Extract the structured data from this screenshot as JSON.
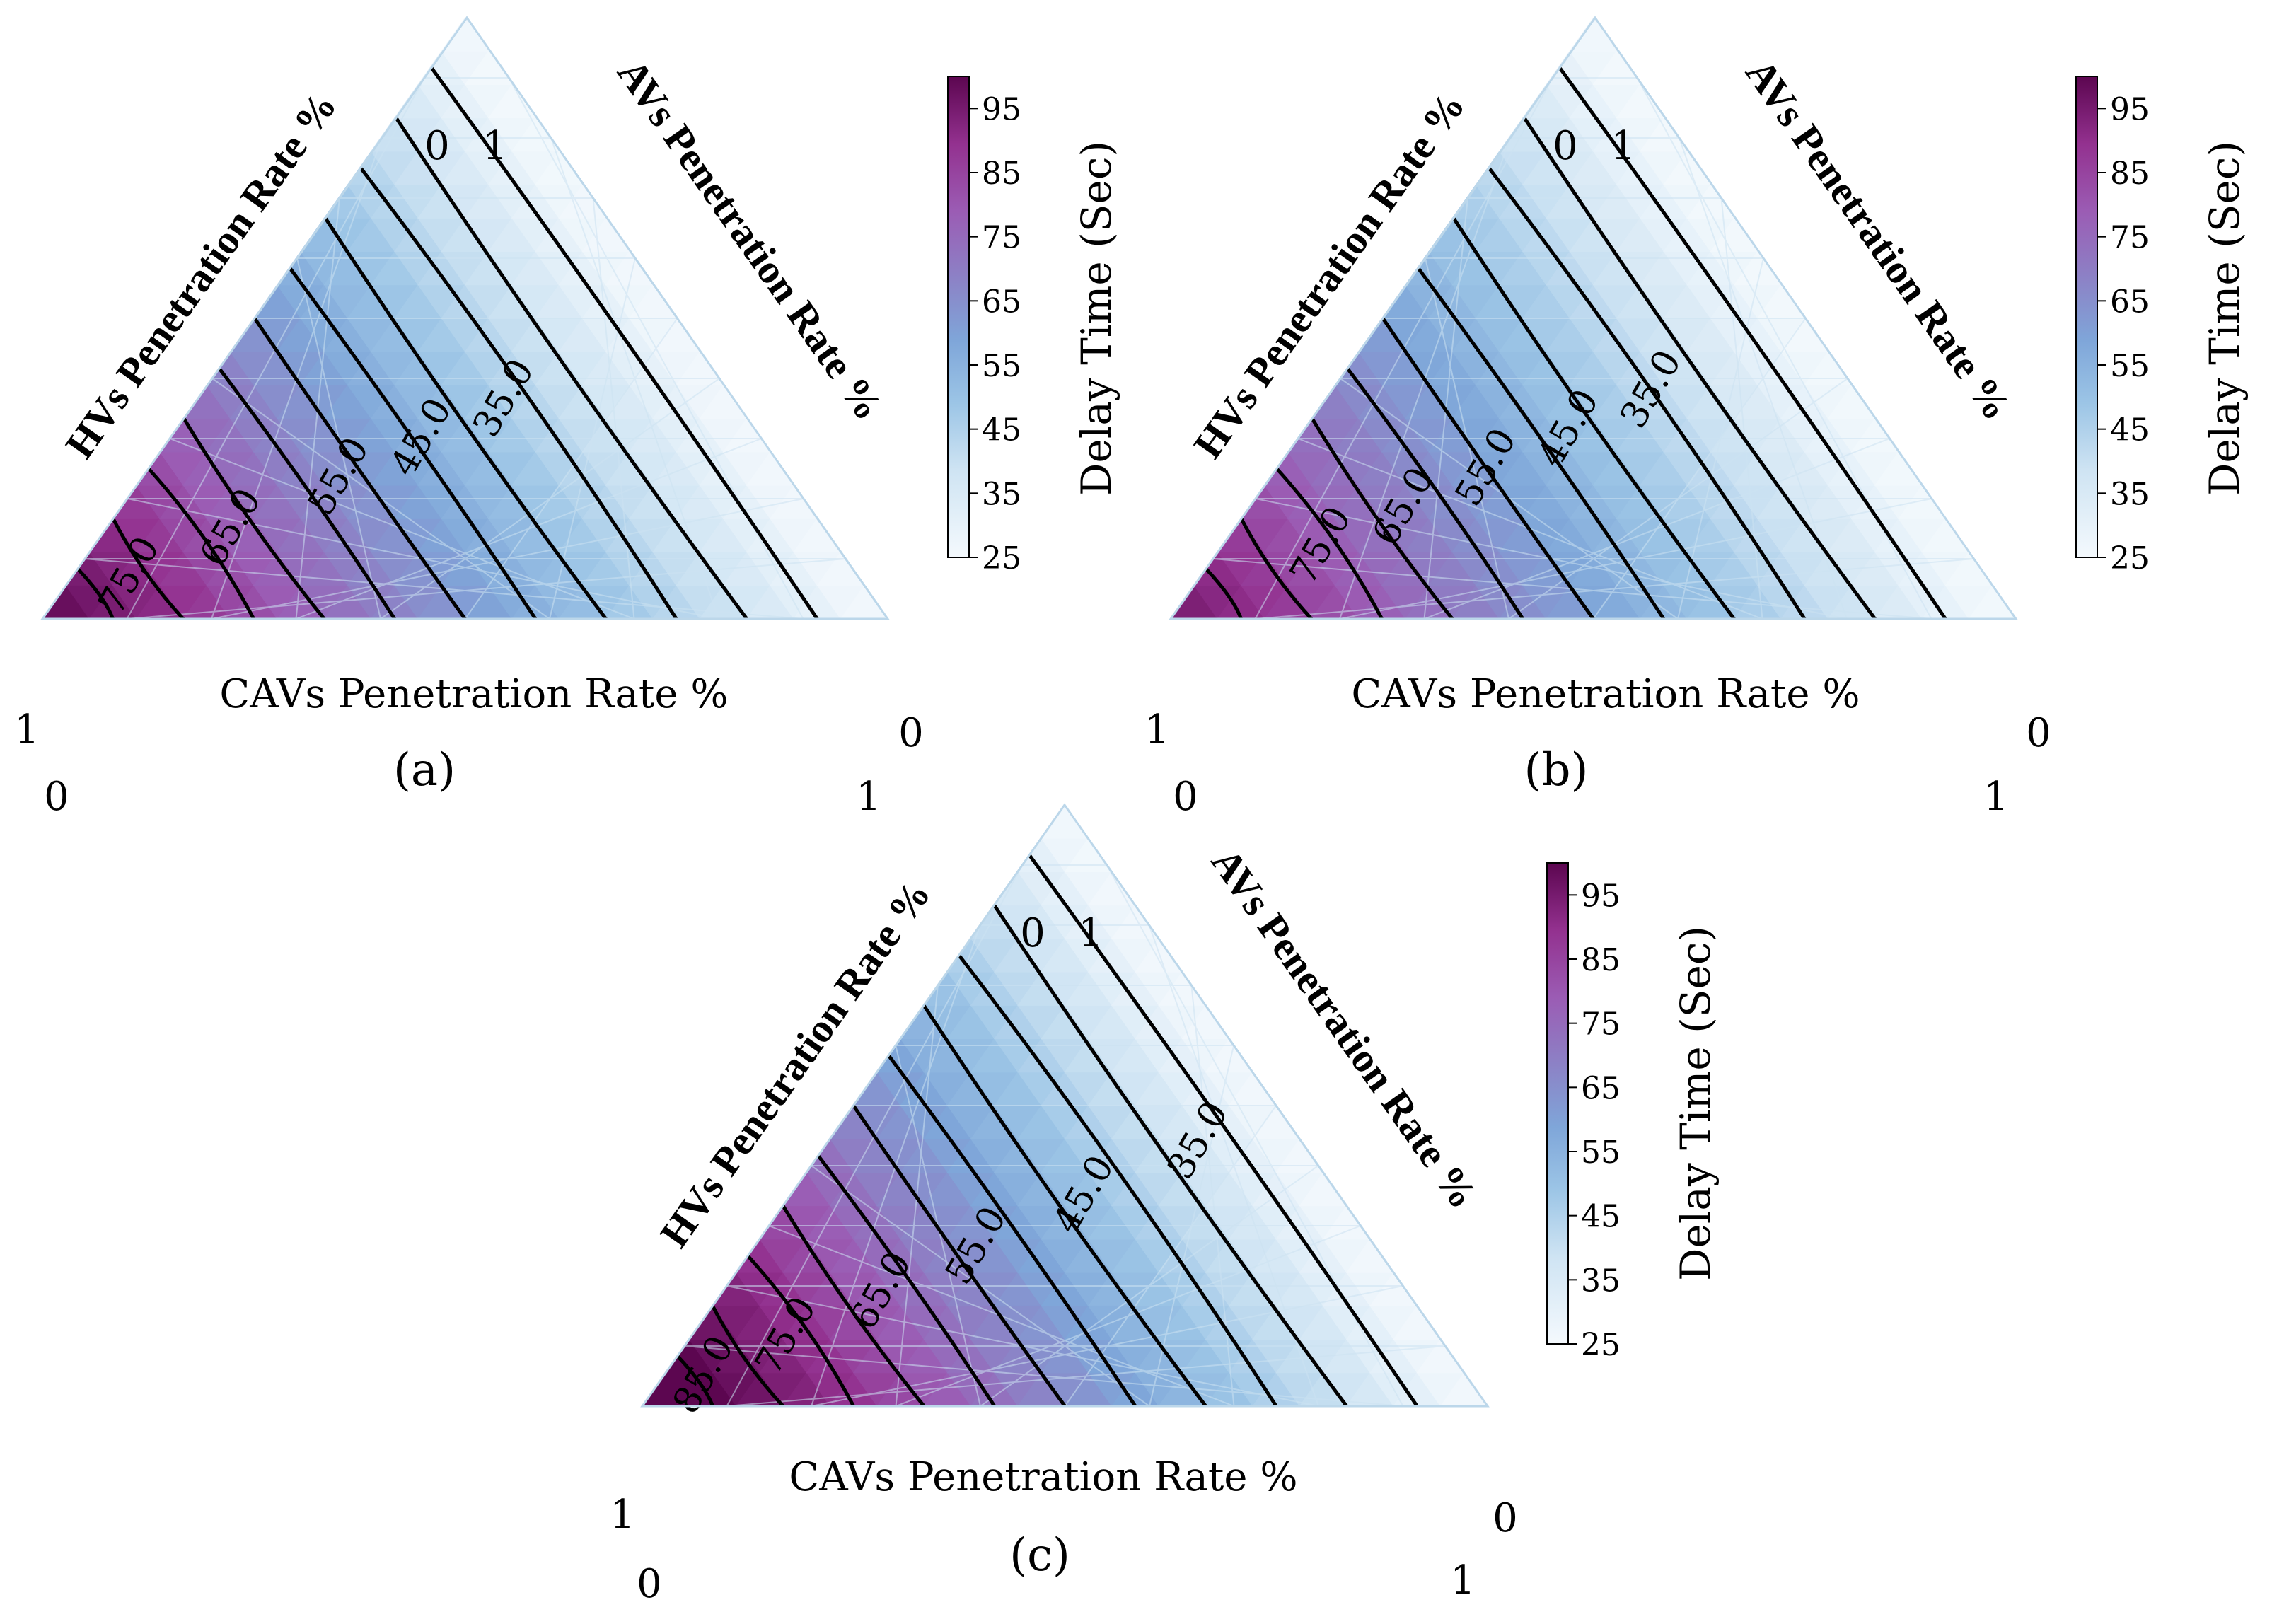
{
  "chart_data": [
    {
      "type": "ternary-contour",
      "panel_label": "(a)",
      "left_axis_label": "HVs Penetration Rate %",
      "right_axis_label": "AVs Penetration Rate %",
      "bottom_axis_label": "CAVs Penetration Rate %",
      "corner_ticks": {
        "top_left": "0",
        "top_right": "1",
        "bottom_left_outer": "1",
        "bottom_left_inner": "0",
        "bottom_right_outer": "0",
        "bottom_right_inner": "1"
      },
      "contour_labels": [
        "35.0",
        "45.0",
        "55.0",
        "65.0",
        "75.0"
      ],
      "value_range": [
        25,
        100
      ],
      "colorbar": {
        "label": "Delay Time (Sec)",
        "ticks": [
          "25",
          "35",
          "45",
          "55",
          "65",
          "75",
          "85",
          "95"
        ]
      }
    },
    {
      "type": "ternary-contour",
      "panel_label": "(b)",
      "left_axis_label": "HVs Penetration Rate %",
      "right_axis_label": "AVs Penetration Rate %",
      "bottom_axis_label": "CAVs Penetration Rate %",
      "corner_ticks": {
        "top_left": "0",
        "top_right": "1",
        "bottom_left_outer": "1",
        "bottom_left_inner": "0",
        "bottom_right_outer": "0",
        "bottom_right_inner": "1"
      },
      "contour_labels": [
        "35.0",
        "45.0",
        "55.0",
        "65.0",
        "75.0"
      ],
      "value_range": [
        25,
        100
      ],
      "colorbar": {
        "label": "Delay Time (Sec)",
        "ticks": [
          "25",
          "35",
          "45",
          "55",
          "65",
          "75",
          "85",
          "95"
        ]
      }
    },
    {
      "type": "ternary-contour",
      "panel_label": "(c)",
      "left_axis_label": "HVs Penetration Rate %",
      "right_axis_label": "AVs Penetration Rate %",
      "bottom_axis_label": "CAVs Penetration Rate %",
      "corner_ticks": {
        "top_left": "0",
        "top_right": "1",
        "bottom_left_outer": "1",
        "bottom_left_inner": "0",
        "bottom_right_outer": "0",
        "bottom_right_inner": "1"
      },
      "contour_labels": [
        "35.0",
        "45.0",
        "55.0",
        "65.0",
        "75.0",
        "85.0"
      ],
      "value_range": [
        25,
        100
      ],
      "colorbar": {
        "label": "Delay Time (Sec)",
        "ticks": [
          "25",
          "35",
          "45",
          "55",
          "65",
          "75",
          "85",
          "95"
        ]
      }
    }
  ],
  "colors": {
    "low": "#f4f9fd",
    "mid": "#7fb3dd",
    "high": "#6a0a5c",
    "contour_line": "#000000",
    "grid_line": "#cde3f2"
  }
}
